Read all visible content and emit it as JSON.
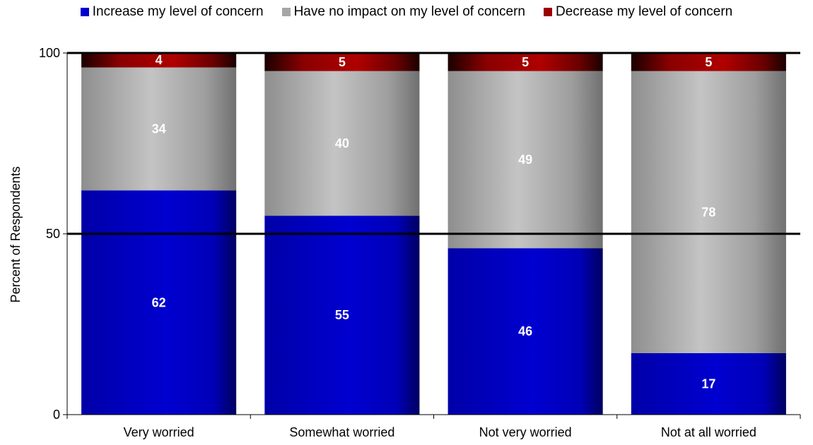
{
  "chart_data": {
    "type": "bar",
    "stacked": true,
    "categories": [
      "Very worried",
      "Somewhat worried",
      "Not very worried",
      "Not at all worried"
    ],
    "series": [
      {
        "name": "Increase my level of concern",
        "values": [
          62,
          55,
          46,
          17
        ],
        "color": "#0000cc"
      },
      {
        "name": "Have no impact on my level of concern",
        "values": [
          34,
          40,
          49,
          78
        ],
        "color": "#a6a6a6"
      },
      {
        "name": "Decrease my level of concern",
        "values": [
          4,
          5,
          5,
          5
        ],
        "color": "#990000"
      }
    ],
    "title": "",
    "xlabel": "",
    "ylabel": "Percent of Respondents",
    "ylim": [
      0,
      100
    ],
    "yticks": [
      0,
      50,
      100
    ],
    "gridlines": [
      50,
      100
    ],
    "legend_position": "top"
  }
}
